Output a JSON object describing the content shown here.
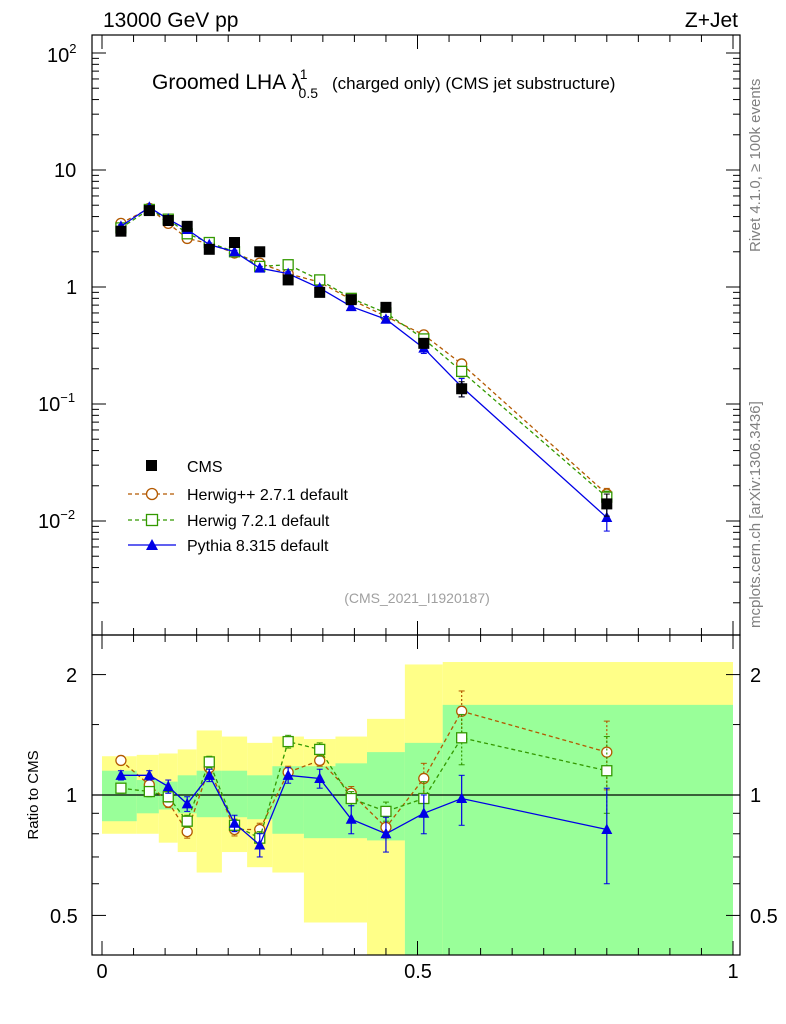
{
  "header": {
    "left_label": "13000 GeV pp",
    "right_label": "Z+Jet"
  },
  "plot_title": {
    "main": "Groomed LHA",
    "symbol": "λ",
    "superscript": "1",
    "subscript": "0.5",
    "suffix": "(charged only) (CMS jet substructure)"
  },
  "side_labels": {
    "rivet": "Rivet 4.1.0, ≥ 100k events",
    "mcplots": "mcplots.cern.ch [arXiv:1306.3436]"
  },
  "analysis_id": "(CMS_2021_I1920187)",
  "colors": {
    "cms": "#000000",
    "herwigpp": "#b35900",
    "herwig7": "#339900",
    "pythia": "#0000e6",
    "band_inner": "#99ff99",
    "band_outer": "#ffff88"
  },
  "chart_data": [
    {
      "type": "scatter",
      "panel": "main",
      "yscale": "log",
      "xlim": [
        0,
        1
      ],
      "ylim": [
        0.001,
        150
      ],
      "y_ticks": [
        {
          "base": "10",
          "exp": "2",
          "value": 100
        },
        {
          "base": "10",
          "exp": "",
          "value": 10
        },
        {
          "base": "1",
          "exp": "",
          "value": 1
        },
        {
          "base": "10",
          "exp": "−1",
          "value": 0.1
        },
        {
          "base": "10",
          "exp": "−2",
          "value": 0.01
        }
      ],
      "series": [
        {
          "name": "CMS",
          "key": "cms",
          "marker": "square-filled",
          "line": "none",
          "x": [
            0.03,
            0.075,
            0.105,
            0.135,
            0.17,
            0.21,
            0.25,
            0.295,
            0.345,
            0.395,
            0.45,
            0.51,
            0.57,
            0.8
          ],
          "y": [
            3.0,
            4.5,
            3.7,
            3.3,
            2.1,
            2.4,
            2.0,
            1.15,
            0.9,
            0.78,
            0.67,
            0.33,
            0.135,
            0.014
          ],
          "err": [
            0.1,
            0.15,
            0.12,
            0.12,
            0.08,
            0.1,
            0.1,
            0.06,
            0.05,
            0.05,
            0.05,
            0.03,
            0.02,
            0.003
          ]
        },
        {
          "name": "Herwig++ 2.7.1 default",
          "key": "herwigpp",
          "marker": "circle-open",
          "line": "dashed",
          "x": [
            0.03,
            0.075,
            0.105,
            0.135,
            0.17,
            0.21,
            0.25,
            0.295,
            0.345,
            0.395,
            0.45,
            0.51,
            0.57,
            0.8
          ],
          "y": [
            3.5,
            4.7,
            3.5,
            2.6,
            2.35,
            1.95,
            1.6,
            1.3,
            1.1,
            0.78,
            0.56,
            0.39,
            0.22,
            0.017
          ],
          "err": [
            0.1,
            0.1,
            0.1,
            0.08,
            0.08,
            0.06,
            0.05,
            0.05,
            0.04,
            0.03,
            0.03,
            0.02,
            0.02,
            0.002
          ]
        },
        {
          "name": "Herwig 7.2.1 default",
          "key": "herwig7",
          "marker": "square-open",
          "line": "dashed",
          "x": [
            0.03,
            0.075,
            0.105,
            0.135,
            0.17,
            0.21,
            0.25,
            0.295,
            0.345,
            0.395,
            0.45,
            0.51,
            0.57,
            0.8
          ],
          "y": [
            3.2,
            4.6,
            3.8,
            2.85,
            2.4,
            2.0,
            1.5,
            1.55,
            1.15,
            0.8,
            0.6,
            0.36,
            0.19,
            0.016
          ],
          "err": [
            0.1,
            0.1,
            0.1,
            0.08,
            0.08,
            0.06,
            0.05,
            0.05,
            0.04,
            0.03,
            0.03,
            0.02,
            0.02,
            0.002
          ]
        },
        {
          "name": "Pythia 8.315 default",
          "key": "pythia",
          "marker": "triangle-filled",
          "line": "solid",
          "x": [
            0.03,
            0.075,
            0.105,
            0.135,
            0.17,
            0.21,
            0.25,
            0.295,
            0.345,
            0.395,
            0.45,
            0.51,
            0.57,
            0.8
          ],
          "y": [
            3.3,
            4.8,
            3.8,
            3.1,
            2.3,
            2.0,
            1.45,
            1.3,
            0.98,
            0.68,
            0.53,
            0.3,
            0.14,
            0.0107
          ],
          "err": [
            0.1,
            0.1,
            0.1,
            0.08,
            0.08,
            0.06,
            0.05,
            0.05,
            0.04,
            0.03,
            0.03,
            0.03,
            0.025,
            0.0025
          ]
        }
      ]
    },
    {
      "type": "scatter",
      "panel": "ratio",
      "ylabel": "Ratio to CMS",
      "xlim": [
        0,
        1
      ],
      "ylim": [
        0.42,
        2.3
      ],
      "y_ticks": [
        "0.5",
        "1",
        "2"
      ],
      "x_ticks": [
        "0",
        "0.5",
        "1"
      ],
      "bands": {
        "edges": [
          0,
          0.055,
          0.09,
          0.12,
          0.15,
          0.19,
          0.23,
          0.27,
          0.32,
          0.37,
          0.42,
          0.48,
          0.54,
          1.0
        ],
        "inner_low": [
          0.86,
          0.9,
          0.92,
          0.9,
          0.88,
          0.88,
          0.87,
          0.8,
          0.78,
          0.78,
          0.77,
          0.36,
          0.36
        ],
        "inner_high": [
          1.15,
          1.09,
          1.08,
          1.12,
          1.15,
          1.15,
          1.12,
          1.18,
          1.18,
          1.2,
          1.28,
          1.35,
          1.68
        ],
        "outer_low": [
          0.8,
          0.8,
          0.76,
          0.72,
          0.64,
          0.72,
          0.66,
          0.64,
          0.48,
          0.48,
          0.38,
          0.28,
          0.28
        ],
        "outer_high": [
          1.25,
          1.26,
          1.27,
          1.3,
          1.45,
          1.4,
          1.35,
          1.4,
          1.38,
          1.4,
          1.55,
          2.12,
          2.15
        ]
      },
      "series": [
        {
          "name": "Herwig++ 2.7.1 default",
          "key": "herwigpp",
          "marker": "circle-open",
          "line": "dashed",
          "x": [
            0.03,
            0.075,
            0.105,
            0.135,
            0.17,
            0.21,
            0.25,
            0.295,
            0.345,
            0.395,
            0.45,
            0.51,
            0.57,
            0.8
          ],
          "y": [
            1.22,
            1.06,
            0.96,
            0.81,
            1.17,
            0.82,
            0.82,
            1.14,
            1.22,
            1.01,
            0.83,
            1.1,
            1.62,
            1.28
          ],
          "err": [
            0.03,
            0.03,
            0.03,
            0.03,
            0.04,
            0.03,
            0.03,
            0.04,
            0.04,
            0.04,
            0.05,
            0.1,
            0.2,
            0.25
          ]
        },
        {
          "name": "Herwig 7.2.1 default",
          "key": "herwig7",
          "marker": "square-open",
          "line": "dashed",
          "x": [
            0.03,
            0.075,
            0.105,
            0.135,
            0.17,
            0.21,
            0.25,
            0.295,
            0.345,
            0.395,
            0.45,
            0.51,
            0.57,
            0.8
          ],
          "y": [
            1.04,
            1.02,
            0.99,
            0.86,
            1.21,
            0.84,
            0.78,
            1.36,
            1.3,
            0.98,
            0.91,
            0.98,
            1.39,
            1.15
          ],
          "err": [
            0.03,
            0.03,
            0.03,
            0.03,
            0.04,
            0.03,
            0.03,
            0.05,
            0.05,
            0.04,
            0.05,
            0.1,
            0.2,
            0.25
          ]
        },
        {
          "name": "Pythia 8.315 default",
          "key": "pythia",
          "marker": "triangle-filled",
          "line": "solid",
          "x": [
            0.03,
            0.075,
            0.105,
            0.135,
            0.17,
            0.21,
            0.25,
            0.295,
            0.345,
            0.395,
            0.45,
            0.51,
            0.57,
            0.8
          ],
          "y": [
            1.12,
            1.12,
            1.05,
            0.95,
            1.12,
            0.85,
            0.75,
            1.12,
            1.1,
            0.87,
            0.8,
            0.9,
            0.98,
            0.82
          ],
          "err": [
            0.03,
            0.03,
            0.04,
            0.04,
            0.04,
            0.04,
            0.05,
            0.05,
            0.06,
            0.07,
            0.08,
            0.1,
            0.14,
            0.22
          ]
        }
      ]
    }
  ]
}
